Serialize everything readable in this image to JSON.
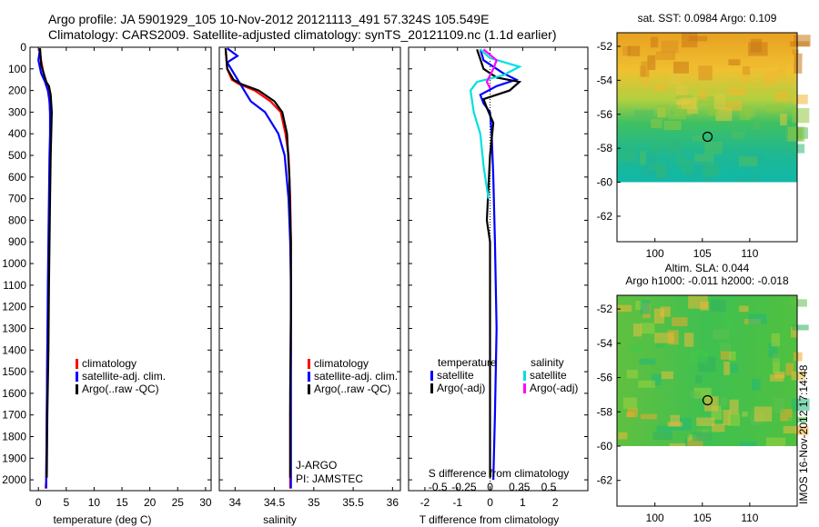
{
  "header": {
    "line1": "Argo profile: JA 5901929_105 10-Nov-2012 20121113_491 57.324S 105.549E",
    "line2": "Climatology: CARS2009. Satellite-adjusted climatology: synTS_20121109.nc (1.1d earlier)"
  },
  "stamp": "IMOS 16-Nov-2012 17:14:48",
  "colors": {
    "climatology": "#ff0000",
    "satellite": "#0000ff",
    "argo": "#000000",
    "sal_satellite": "#00e0e0",
    "sal_argo": "#ff00ff"
  },
  "chart_data": [
    {
      "type": "line",
      "name": "temperature-profile",
      "xlabel": "temperature (deg C)",
      "xlim": [
        -1.5,
        31
      ],
      "xticks": [
        0,
        5,
        10,
        15,
        20,
        25,
        30
      ],
      "ylim": [
        2050,
        0
      ],
      "yticks": [
        0,
        100,
        200,
        300,
        400,
        500,
        600,
        700,
        800,
        900,
        1000,
        1100,
        1200,
        1300,
        1400,
        1500,
        1600,
        1700,
        1800,
        1900,
        2000
      ],
      "legend": [
        "climatology",
        "satellite-adj. clim.",
        "Argo(..raw -QC)"
      ],
      "series": [
        {
          "name": "climatology",
          "color_key": "climatology",
          "x": [
            0.2,
            0.5,
            0.9,
            1.4,
            1.8,
            2.0,
            2.1,
            2.2,
            2.1,
            2.0,
            1.9,
            1.8,
            1.6,
            1.5,
            1.4,
            1.3
          ],
          "y": [
            5,
            60,
            120,
            160,
            200,
            250,
            300,
            400,
            500,
            700,
            900,
            1100,
            1400,
            1700,
            2000,
            2040
          ]
        },
        {
          "name": "satellite",
          "color_key": "satellite",
          "x": [
            0.3,
            0.0,
            0.5,
            1.2,
            1.7,
            2.0,
            2.1,
            2.1,
            2.0,
            1.9,
            1.8,
            1.7,
            1.6,
            1.5,
            1.4,
            1.4
          ],
          "y": [
            5,
            60,
            120,
            160,
            200,
            250,
            300,
            400,
            500,
            700,
            900,
            1100,
            1400,
            1700,
            2000,
            2040
          ]
        },
        {
          "name": "argo",
          "color_key": "argo",
          "x": [
            0.3,
            0.5,
            1.4,
            1.9,
            2.2,
            2.4,
            2.3,
            2.2,
            2.1,
            2.0,
            1.9,
            1.8,
            1.6,
            1.5
          ],
          "y": [
            5,
            80,
            160,
            180,
            220,
            300,
            400,
            500,
            700,
            900,
            1100,
            1400,
            1700,
            1990
          ]
        }
      ]
    },
    {
      "type": "line",
      "name": "salinity-profile",
      "xlabel": "salinity",
      "xlim": [
        33.8,
        36.1
      ],
      "xticks": [
        34,
        34.5,
        35,
        35.5,
        36
      ],
      "ylim": [
        2050,
        0
      ],
      "legend": [
        "climatology",
        "satellite-adj. clim.",
        "Argo(..raw -QC)"
      ],
      "annotations": [
        "J-ARGO",
        "PI: JAMSTEC"
      ],
      "series": [
        {
          "name": "climatology",
          "color_key": "climatology",
          "x": [
            33.88,
            33.9,
            33.96,
            34.05,
            34.25,
            34.45,
            34.58,
            34.64,
            34.68,
            34.7,
            34.71,
            34.71,
            34.71,
            34.7,
            34.7,
            34.7
          ],
          "y": [
            5,
            100,
            150,
            170,
            200,
            250,
            300,
            400,
            500,
            700,
            900,
            1100,
            1400,
            1700,
            2000,
            2040
          ]
        },
        {
          "name": "satellite",
          "color_key": "satellite",
          "x": [
            33.9,
            34.03,
            33.9,
            33.95,
            34.05,
            34.2,
            34.38,
            34.55,
            34.63,
            34.68,
            34.7,
            34.71,
            34.71,
            34.71,
            34.71,
            34.71
          ],
          "y": [
            5,
            40,
            70,
            100,
            160,
            250,
            300,
            400,
            500,
            700,
            900,
            1100,
            1400,
            1700,
            2000,
            2040
          ]
        },
        {
          "name": "argo",
          "color_key": "argo",
          "x": [
            33.88,
            33.9,
            33.98,
            34.08,
            34.3,
            34.5,
            34.6,
            34.66,
            34.69,
            34.71,
            34.71,
            34.7,
            34.7
          ],
          "y": [
            5,
            100,
            150,
            170,
            200,
            250,
            300,
            400,
            600,
            900,
            1200,
            1600,
            1990
          ]
        }
      ]
    },
    {
      "type": "line",
      "name": "difference-profile",
      "xlabel": "T difference from climatology",
      "x2label": "S difference from climatology",
      "xlim": [
        -2.5,
        3
      ],
      "xticks": [
        -2,
        -1,
        0,
        1,
        2
      ],
      "x2ticks": [
        "-0.5",
        "-0.25",
        "0",
        "0.25",
        "0.5"
      ],
      "ylim": [
        2050,
        0
      ],
      "legend_headers": [
        "temperature",
        "salinity"
      ],
      "legend": [
        "satellite",
        "Argo(-adj)",
        "satellite",
        "Argo(-adj)"
      ],
      "series": [
        {
          "name": "T satellite",
          "color_key": "satellite",
          "x": [
            -0.3,
            -0.2,
            0.4,
            0.8,
            0.2,
            -0.3,
            -0.2,
            0.0,
            0.05,
            0.1,
            0.15,
            0.2,
            0.15,
            0.1
          ],
          "y": [
            10,
            60,
            120,
            150,
            180,
            220,
            260,
            300,
            400,
            600,
            900,
            1300,
            1700,
            2000
          ]
        },
        {
          "name": "T argo",
          "color_key": "argo",
          "x": [
            -0.4,
            -0.2,
            0.2,
            0.9,
            0.6,
            -0.2,
            -0.1,
            0.1,
            0.0,
            -0.1,
            0.0,
            0.0,
            0.0
          ],
          "y": [
            10,
            100,
            140,
            160,
            200,
            240,
            280,
            350,
            500,
            800,
            900,
            1400,
            1990
          ]
        },
        {
          "name": "S satellite",
          "color_key": "sal_satellite",
          "x": [
            -0.3,
            0.0,
            0.9,
            0.4,
            -0.4,
            -0.6,
            -0.5,
            -0.3,
            -0.2,
            -0.1,
            -0.05
          ],
          "y": [
            10,
            50,
            90,
            130,
            160,
            200,
            300,
            400,
            550,
            650,
            700
          ]
        },
        {
          "name": "S argo",
          "color_key": "sal_argo",
          "x": [
            -0.2,
            0.2,
            0.1,
            0.0,
            -0.1,
            0.0
          ],
          "y": [
            10,
            60,
            100,
            130,
            160,
            190
          ]
        }
      ]
    },
    {
      "type": "heatmap",
      "name": "sst-map",
      "title": "sat. SST: 0.0984 Argo: 0.109",
      "xticks": [
        100,
        105,
        110
      ],
      "yticks": [
        -52,
        -54,
        -56,
        -58,
        -60,
        -62
      ],
      "xlim": [
        96,
        115
      ],
      "ylim": [
        -63.5,
        -51.2
      ],
      "marker": {
        "lon": 105.549,
        "lat": -57.324
      }
    },
    {
      "type": "heatmap",
      "name": "sla-map",
      "title": "Altim. SLA: 0.044",
      "subtitle": "Argo h1000: -0.011 h2000: -0.018",
      "xticks": [
        100,
        105,
        110
      ],
      "yticks": [
        -52,
        -54,
        -56,
        -58,
        -60,
        -62
      ],
      "xlim": [
        96,
        115
      ],
      "ylim": [
        -63.5,
        -51.2
      ],
      "marker": {
        "lon": 105.549,
        "lat": -57.324
      }
    }
  ]
}
